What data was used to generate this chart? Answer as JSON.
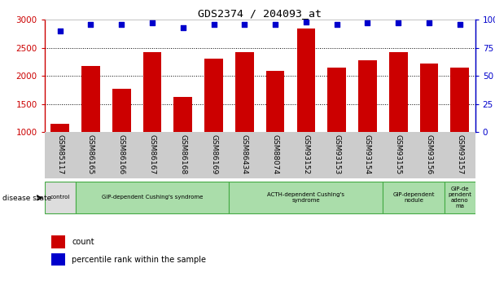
{
  "title": "GDS2374 / 204093_at",
  "categories": [
    "GSM85117",
    "GSM86165",
    "GSM86166",
    "GSM86167",
    "GSM86168",
    "GSM86169",
    "GSM86434",
    "GSM88074",
    "GSM93152",
    "GSM93153",
    "GSM93154",
    "GSM93155",
    "GSM93156",
    "GSM93157"
  ],
  "bar_values": [
    1150,
    2170,
    1775,
    2420,
    1620,
    2310,
    2420,
    2085,
    2840,
    2150,
    2280,
    2420,
    2220,
    2150
  ],
  "percentile_values": [
    90,
    96,
    96,
    97,
    93,
    96,
    96,
    96,
    98,
    96,
    97,
    97,
    97,
    96
  ],
  "bar_color": "#cc0000",
  "dot_color": "#0000cc",
  "ylim_left": [
    1000,
    3000
  ],
  "ylim_right": [
    0,
    100
  ],
  "yticks_left": [
    1000,
    1500,
    2000,
    2500,
    3000
  ],
  "yticks_right": [
    0,
    25,
    50,
    75,
    100
  ],
  "grid_values": [
    1500,
    2000,
    2500
  ],
  "disease_groups": [
    {
      "label": "control",
      "start": 0,
      "end": 1,
      "color": "#dddddd"
    },
    {
      "label": "GIP-dependent Cushing's syndrome",
      "start": 1,
      "end": 6,
      "color": "#aaddaa"
    },
    {
      "label": "ACTH-dependent Cushing's\nsyndrome",
      "start": 6,
      "end": 11,
      "color": "#aaddaa"
    },
    {
      "label": "GIP-dependent\nnodule",
      "start": 11,
      "end": 13,
      "color": "#aaddaa"
    },
    {
      "label": "GIP-de\npendent\nadeno\nma",
      "start": 13,
      "end": 14,
      "color": "#aaddaa"
    }
  ],
  "bar_color_legend": "#cc0000",
  "dot_color_legend": "#0000cc",
  "tick_label_bg": "#cccccc",
  "xlabel_color": "#cc0000",
  "right_axis_color": "#0000cc"
}
